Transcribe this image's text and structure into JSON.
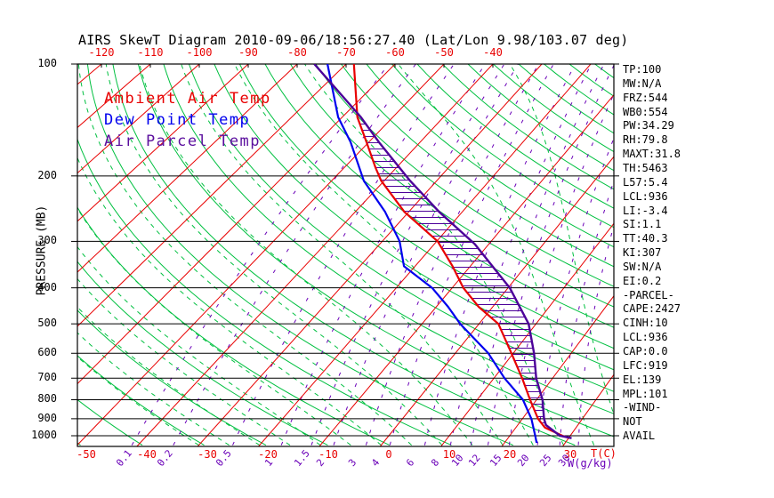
{
  "title": "AIRS SkewT Diagram 2010-09-06/18:56:27.40 (Lat/Lon 9.98/103.07 deg)",
  "legend": {
    "items": [
      {
        "label": "Ambient Air Temp",
        "color": "#e80000"
      },
      {
        "label": "Dew Point Temp",
        "color": "#0000ee"
      },
      {
        "label": "Air Parcel Temp",
        "color": "#5b0f9e"
      }
    ]
  },
  "axes": {
    "pressure_axis_label": "PRESSURE (MB)",
    "pressure_ticks_mb": [
      100,
      200,
      300,
      400,
      500,
      600,
      700,
      800,
      900,
      1000
    ],
    "top_temp_ticks_c": [
      -120,
      -110,
      -100,
      -90,
      -80,
      -70,
      -60,
      -50,
      -40
    ],
    "bottom_temp_ticks_c": [
      -50,
      -40,
      -30,
      -20,
      -10,
      0,
      10,
      20,
      30
    ],
    "temp_unit_label": "T(C)",
    "mixing_unit_label": "W(g/kg)",
    "mixing_ratio_ticks_g_kg": [
      0.1,
      0.2,
      0.5,
      1,
      1.5,
      2,
      3,
      4,
      6,
      8,
      10,
      12,
      15,
      20,
      25,
      30
    ]
  },
  "stats_panel": {
    "lines": [
      "TP:100",
      "MW:N/A",
      "FRZ:544",
      "WB0:554",
      "PW:34.29",
      "RH:79.8",
      "MAXT:31.8",
      "TH:5463",
      "L57:5.4",
      "LCL:936",
      "LI:-3.4",
      "SI:1.1",
      "TT:40.3",
      "KI:307",
      "SW:N/A",
      "EI:0.2",
      "-PARCEL-",
      "CAPE:2427",
      "CINH:10",
      "LCL:936",
      "CAP:0.0",
      "LFC:919",
      "EL:139",
      "MPL:101",
      "-WIND-",
      "NOT",
      "AVAIL"
    ]
  },
  "chart_data": {
    "type": "skewt-sounding",
    "title": "AIRS SkewT Diagram 2010-09-06/18:56:27.40 (Lat/Lon 9.98/103.07 deg)",
    "pressure_unit": "mb",
    "temp_unit": "C",
    "pressure_range_mb": [
      100,
      1050
    ],
    "top_temp_axis_range_c": [
      -120,
      -40
    ],
    "bottom_temp_axis_range_c": [
      -50,
      30
    ],
    "series": [
      {
        "name": "Ambient Air Temp",
        "color": "#e80000",
        "points_p_t": [
          [
            100,
            -68.4
          ],
          [
            139,
            -57.0
          ],
          [
            162,
            -50.5
          ],
          [
            190,
            -44.0
          ],
          [
            206,
            -40.6
          ],
          [
            250,
            -30.8
          ],
          [
            300,
            -19.8
          ],
          [
            350,
            -13.2
          ],
          [
            400,
            -8.0
          ],
          [
            450,
            -2.5
          ],
          [
            500,
            3.4
          ],
          [
            600,
            9.7
          ],
          [
            700,
            14.8
          ],
          [
            800,
            18.9
          ],
          [
            900,
            22.6
          ],
          [
            950,
            24.8
          ],
          [
            1000,
            28.7
          ],
          [
            1015,
            30.2
          ]
        ]
      },
      {
        "name": "Dew Point Temp",
        "color": "#0000ee",
        "points_p_t": [
          [
            100,
            -73.8
          ],
          [
            139,
            -60.8
          ],
          [
            162,
            -53.6
          ],
          [
            206,
            -43.9
          ],
          [
            250,
            -34.4
          ],
          [
            300,
            -26.8
          ],
          [
            350,
            -22.0
          ],
          [
            400,
            -13.6
          ],
          [
            450,
            -7.9
          ],
          [
            500,
            -3.3
          ],
          [
            600,
            5.7
          ],
          [
            700,
            11.8
          ],
          [
            800,
            17.7
          ],
          [
            900,
            21.5
          ],
          [
            1000,
            24.2
          ],
          [
            1045,
            25.3
          ]
        ]
      },
      {
        "name": "Air Parcel Temp",
        "color": "#4c0099",
        "points_p_t": [
          [
            100,
            -76.5
          ],
          [
            139,
            -56.3
          ],
          [
            162,
            -48.1
          ],
          [
            206,
            -35.1
          ],
          [
            250,
            -24.3
          ],
          [
            305,
            -12.6
          ],
          [
            400,
            0.3
          ],
          [
            500,
            8.7
          ],
          [
            600,
            13.6
          ],
          [
            700,
            17.2
          ],
          [
            800,
            21.0
          ],
          [
            900,
            23.6
          ],
          [
            936,
            24.7
          ],
          [
            1000,
            28.3
          ],
          [
            1015,
            30.5
          ]
        ]
      }
    ],
    "background_grid": {
      "isotherms_c": {
        "min": -160,
        "max": 40,
        "step": 10,
        "color": "#e80000"
      },
      "dry_adiabats_theta_k": {
        "min": 220,
        "max": 500,
        "step": 10,
        "color": "#00c040"
      },
      "moist_adiabats_thetaw_c": {
        "min": -30,
        "max": 40,
        "step": 5,
        "color": "#00c040"
      },
      "mixing_ratio_lines_g_kg": [
        0.1,
        0.2,
        0.5,
        1,
        1.5,
        2,
        3,
        4,
        6,
        8,
        10,
        12,
        15,
        20,
        25,
        30
      ],
      "mixing_ratio_color": "#6a00b8",
      "pressure_line_color": "#000000"
    },
    "cape_hatch": {
      "color": "#4c0099",
      "between": [
        "Ambient Air Temp",
        "Air Parcel Temp"
      ],
      "from_mb": 145,
      "to_mb": 930
    }
  }
}
